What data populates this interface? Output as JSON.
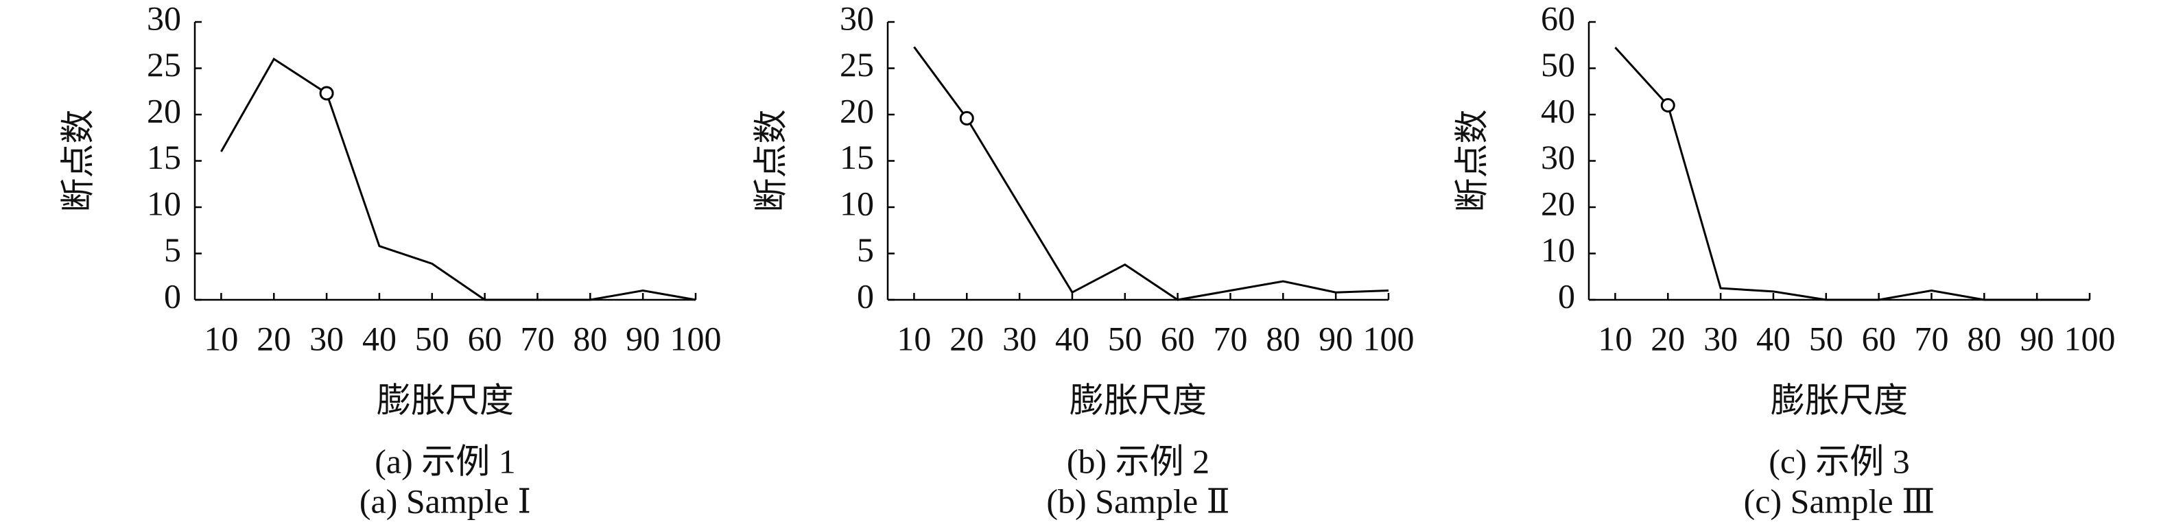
{
  "chart_data": [
    {
      "type": "line",
      "x": [
        10,
        20,
        30,
        40,
        50,
        60,
        70,
        80,
        90,
        100
      ],
      "values": [
        16,
        26,
        22.3,
        5.8,
        3.9,
        0,
        0,
        0,
        1,
        0
      ],
      "color": "#000000",
      "marker_index": 2,
      "xlim": [
        5,
        100
      ],
      "xticks": [
        10,
        20,
        30,
        40,
        50,
        60,
        70,
        80,
        90,
        100
      ],
      "ylim": [
        0,
        30
      ],
      "yticks": [
        0,
        5,
        10,
        15,
        20,
        25,
        30
      ],
      "xlabel": "膨胀尺度",
      "ylabel": "断点数",
      "caption_cn": "(a) 示例 1",
      "caption_en": "(a) Sample Ⅰ"
    },
    {
      "type": "line",
      "x": [
        10,
        20,
        30,
        40,
        50,
        60,
        70,
        80,
        90,
        100
      ],
      "values": [
        27.3,
        19.6,
        10.2,
        0.8,
        3.8,
        0,
        1,
        2,
        0.8,
        1
      ],
      "color": "#000000",
      "marker_index": 1,
      "xlim": [
        5,
        100
      ],
      "xticks": [
        10,
        20,
        30,
        40,
        50,
        60,
        70,
        80,
        90,
        100
      ],
      "ylim": [
        0,
        30
      ],
      "yticks": [
        0,
        5,
        10,
        15,
        20,
        25,
        30
      ],
      "xlabel": "膨胀尺度",
      "ylabel": "断点数",
      "caption_cn": "(b) 示例 2",
      "caption_en": "(b) Sample Ⅱ"
    },
    {
      "type": "line",
      "x": [
        10,
        20,
        30,
        40,
        50,
        60,
        70,
        80,
        90,
        100
      ],
      "values": [
        54.5,
        42,
        2.5,
        1.8,
        0,
        0,
        2,
        0,
        0,
        0
      ],
      "color": "#000000",
      "marker_index": 1,
      "xlim": [
        5,
        100
      ],
      "xticks": [
        10,
        20,
        30,
        40,
        50,
        60,
        70,
        80,
        90,
        100
      ],
      "ylim": [
        0,
        60
      ],
      "yticks": [
        0,
        10,
        20,
        30,
        40,
        50,
        60
      ],
      "xlabel": "膨胀尺度",
      "ylabel": "断点数",
      "caption_cn": "(c) 示例 3",
      "caption_en": "(c) Sample Ⅲ"
    }
  ]
}
